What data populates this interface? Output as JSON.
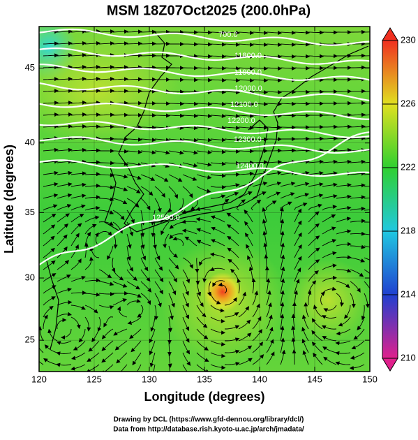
{
  "chart_data": {
    "type": "map",
    "title": "MSM 18Z07Oct2025 (200.0hPa)",
    "x_label": "Longitude (degrees)",
    "y_label": "Latitude  (degrees)",
    "xlim": [
      120,
      150
    ],
    "xticks": [
      120,
      125,
      130,
      135,
      140,
      145,
      150
    ],
    "ylim": [
      22.4,
      47.6
    ],
    "yticks": [
      25,
      30,
      35,
      40,
      45
    ],
    "colorbar": {
      "lim": [
        210,
        230
      ],
      "ticks": [
        210,
        214,
        218,
        222,
        226,
        230
      ],
      "colors": [
        "#e0208c",
        "#2040d0",
        "#20c8e0",
        "#30d030",
        "#e0e020",
        "#f03020"
      ]
    },
    "contour_labels": [
      "700.0",
      "11800.0",
      "11900.0",
      "12000.0",
      "12100.0",
      "12200.0",
      "12300.0",
      "12400.0",
      "12500.0"
    ]
  },
  "footer": [
    "Drawing by DCL (https://www.gfd-dennou.org/library/dcl/)",
    "Data from http://database.rish.kyoto-u.ac.jp/arch/jmadata/"
  ]
}
